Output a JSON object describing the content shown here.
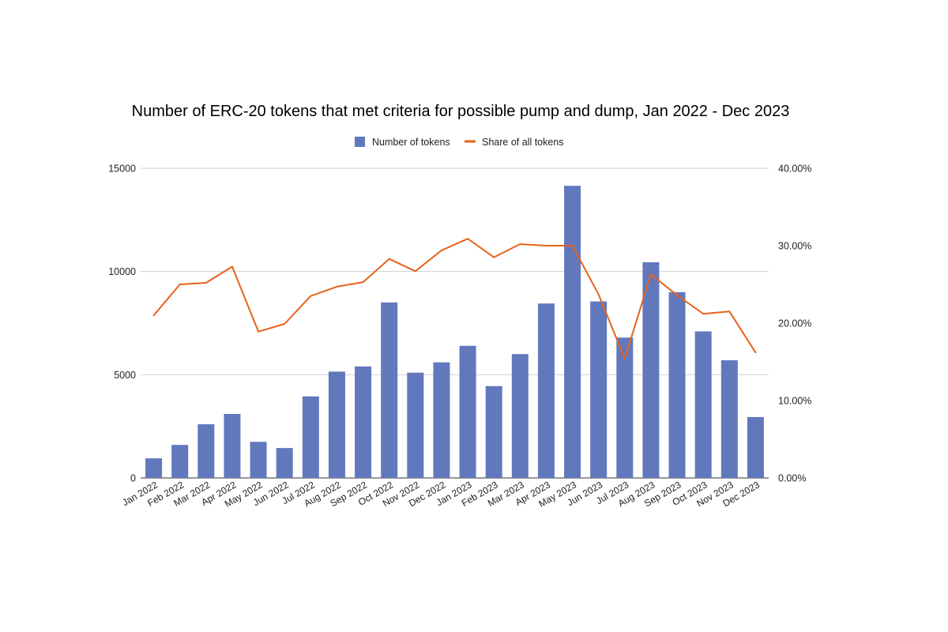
{
  "chart_data": {
    "type": "bar",
    "title": "Number of ERC-20 tokens that met criteria for possible pump and dump, Jan 2022 - Dec 2023",
    "categories": [
      "Jan 2022",
      "Feb 2022",
      "Mar 2022",
      "Apr 2022",
      "May 2022",
      "Jun 2022",
      "Jul 2022",
      "Aug 2022",
      "Sep 2022",
      "Oct 2022",
      "Nov 2022",
      "Dec 2022",
      "Jan 2023",
      "Feb 2023",
      "Mar 2023",
      "Apr 2023",
      "May 2023",
      "Jun 2023",
      "Jul 2023",
      "Aug 2023",
      "Sep 2023",
      "Oct 2023",
      "Nov 2023",
      "Dec 2023"
    ],
    "series": [
      {
        "name": "Number of tokens",
        "type": "bar",
        "axis": "left",
        "color": "#6178bd",
        "values": [
          950,
          1600,
          2600,
          3100,
          1750,
          1450,
          3950,
          5150,
          5400,
          8500,
          5100,
          5600,
          6400,
          4450,
          6000,
          8450,
          14150,
          8550,
          6800,
          10450,
          9000,
          7100,
          5700,
          2950
        ]
      },
      {
        "name": "Share of all tokens",
        "type": "line",
        "axis": "right",
        "color": "#e8621b",
        "values": [
          21.0,
          25.0,
          25.2,
          27.3,
          18.9,
          19.9,
          23.5,
          24.7,
          25.3,
          28.3,
          26.7,
          29.4,
          30.9,
          28.5,
          30.2,
          30.0,
          30.0,
          23.7,
          15.4,
          26.3,
          23.6,
          21.2,
          21.5,
          16.2
        ]
      }
    ],
    "yaxis_left": {
      "min": 0,
      "max": 15000,
      "ticks": [
        "0",
        "5000",
        "10000",
        "15000"
      ],
      "tick_values": [
        0,
        5000,
        10000,
        15000
      ]
    },
    "yaxis_right": {
      "min": 0,
      "max": 40,
      "ticks": [
        "0.00%",
        "10.00%",
        "20.00%",
        "30.00%",
        "40.00%"
      ],
      "tick_values": [
        0,
        10,
        20,
        30,
        40
      ]
    },
    "grid": true,
    "legend": {
      "position": "top-center",
      "items": [
        "Number of tokens",
        "Share of all tokens"
      ]
    }
  }
}
